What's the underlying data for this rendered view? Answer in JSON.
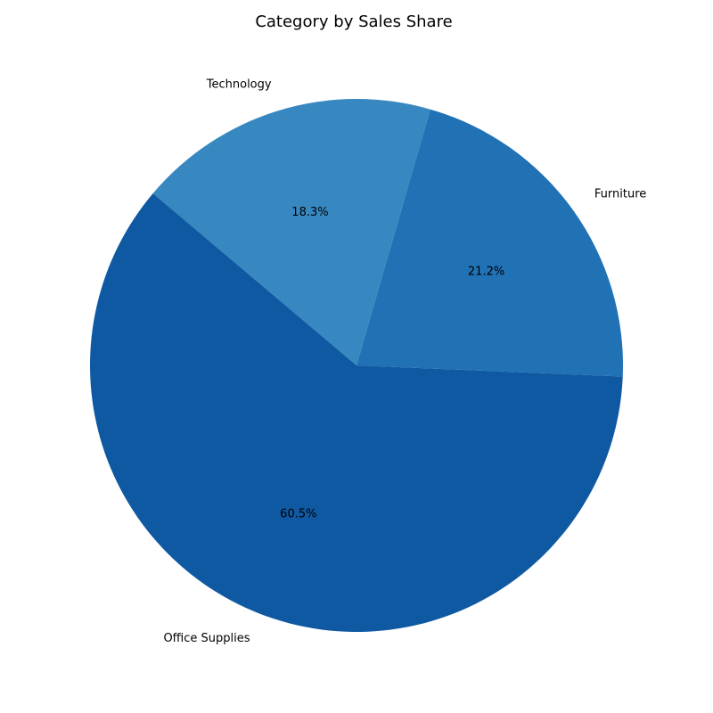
{
  "chart_data": {
    "type": "pie",
    "title": "Category by Sales Share",
    "slices": [
      {
        "label": "Furniture",
        "value": 21.2,
        "pct_label": "21.2%",
        "color": "#2171b5"
      },
      {
        "label": "Technology",
        "value": 18.3,
        "pct_label": "18.3%",
        "color": "#3787c0"
      },
      {
        "label": "Office Supplies",
        "value": 60.5,
        "pct_label": "60.5%",
        "color": "#0f59a3"
      }
    ],
    "start_angle_deg": -2.4,
    "direction": "counterclockwise",
    "legend": "none"
  }
}
